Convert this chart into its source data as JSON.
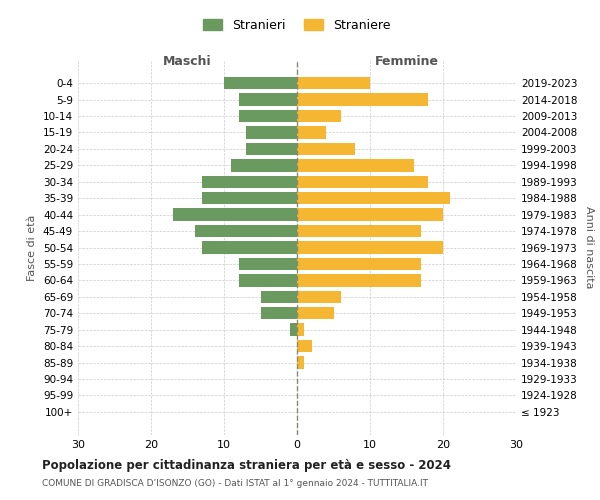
{
  "age_groups": [
    "0-4",
    "5-9",
    "10-14",
    "15-19",
    "20-24",
    "25-29",
    "30-34",
    "35-39",
    "40-44",
    "45-49",
    "50-54",
    "55-59",
    "60-64",
    "65-69",
    "70-74",
    "75-79",
    "80-84",
    "85-89",
    "90-94",
    "95-99",
    "100+"
  ],
  "birth_years": [
    "2019-2023",
    "2014-2018",
    "2009-2013",
    "2004-2008",
    "1999-2003",
    "1994-1998",
    "1989-1993",
    "1984-1988",
    "1979-1983",
    "1974-1978",
    "1969-1973",
    "1964-1968",
    "1959-1963",
    "1954-1958",
    "1949-1953",
    "1944-1948",
    "1939-1943",
    "1934-1938",
    "1929-1933",
    "1924-1928",
    "≤ 1923"
  ],
  "males": [
    10,
    8,
    8,
    7,
    7,
    9,
    13,
    13,
    17,
    14,
    13,
    8,
    8,
    5,
    5,
    1,
    0,
    0,
    0,
    0,
    0
  ],
  "females": [
    10,
    18,
    6,
    4,
    8,
    16,
    18,
    21,
    20,
    17,
    20,
    17,
    17,
    6,
    5,
    1,
    2,
    1,
    0,
    0,
    0
  ],
  "male_color": "#6a9a5f",
  "female_color": "#f5b731",
  "bg_color": "#ffffff",
  "grid_color": "#cccccc",
  "title": "Popolazione per cittadinanza straniera per età e sesso - 2024",
  "subtitle": "COMUNE DI GRADISCA D’ISONZO (GO) - Dati ISTAT al 1° gennaio 2024 - TUTTITALIA.IT",
  "xlabel_left": "Maschi",
  "xlabel_right": "Femmine",
  "ylabel_left": "Fasce di età",
  "ylabel_right": "Anni di nascita",
  "legend_male": "Stranieri",
  "legend_female": "Straniere",
  "xlim": 30,
  "bar_height": 0.75
}
